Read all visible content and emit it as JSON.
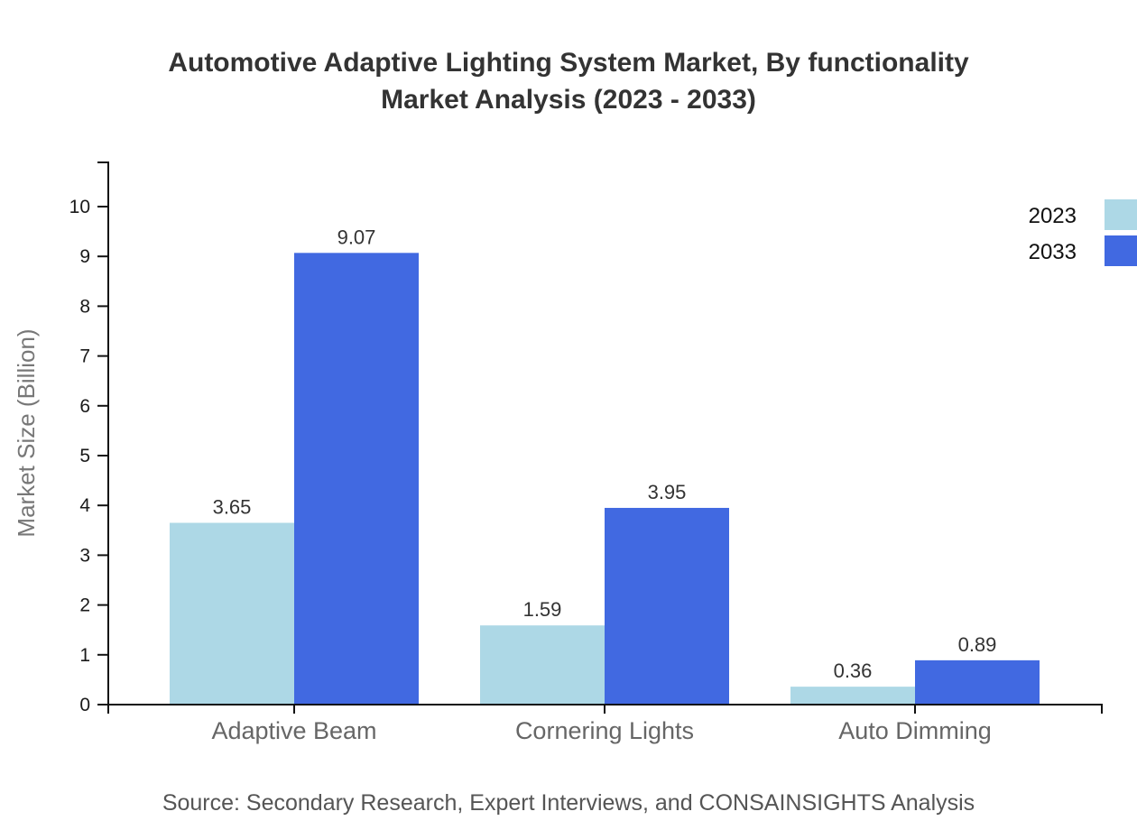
{
  "title": {
    "line1": "Automotive Adaptive Lighting System Market, By functionality",
    "line2": "Market Analysis (2023 - 2033)"
  },
  "source": "Source: Secondary Research, Expert Interviews, and CONSAINSIGHTS Analysis",
  "chart_data": {
    "type": "bar",
    "title": "Automotive Adaptive Lighting System Market, By functionality Market Analysis (2023 - 2033)",
    "categories": [
      "Adaptive Beam",
      "Cornering Lights",
      "Auto Dimming"
    ],
    "series": [
      {
        "name": "2023",
        "color": "#ADD8E6",
        "values": [
          3.65,
          1.59,
          0.36
        ]
      },
      {
        "name": "2033",
        "color": "#4169E1",
        "values": [
          9.07,
          3.95,
          0.89
        ]
      }
    ],
    "xlabel": "",
    "ylabel": "Market Size (Billion)",
    "ylim": [
      0,
      10
    ],
    "yticks": [
      0,
      1,
      2,
      3,
      4,
      5,
      6,
      7,
      8,
      9,
      10
    ],
    "grid": false,
    "value_labels": true,
    "legend_position": "top-right"
  },
  "palette": {
    "title_text": "#333333",
    "axis_line": "#111111",
    "y_tick_text": "#1a1a1a",
    "category_text": "#666666",
    "value_label_text": "#333333",
    "y_axis_title_text": "#777777",
    "legend_text": "#111111",
    "source_text": "#555555",
    "background": "#ffffff"
  }
}
